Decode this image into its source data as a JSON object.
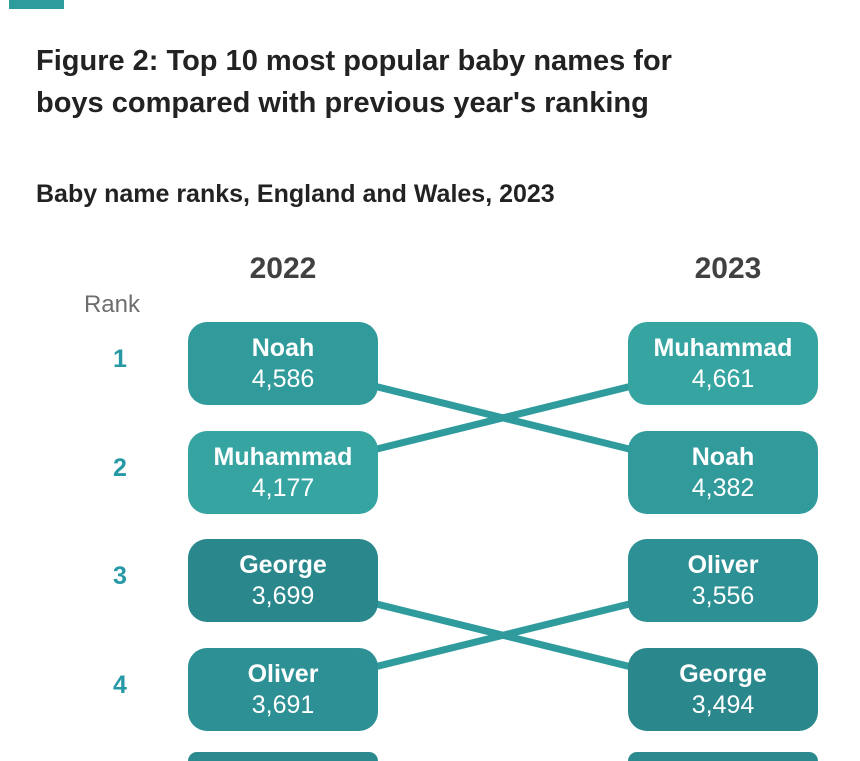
{
  "figure": {
    "title": "Figure 2: Top 10 most popular baby names for boys compared with previous year's ranking",
    "title_lines": [
      "Figure 2: Top 10 most popular baby names for",
      "boys compared with previous year's ranking"
    ],
    "subtitle": "Baby name ranks, England and Wales, 2023"
  },
  "chart_data": {
    "type": "slope-rank-chart",
    "columns": [
      "2022",
      "2023"
    ],
    "rank_label": "Rank",
    "ranks": [
      "1",
      "2",
      "3",
      "4"
    ],
    "series_2022": [
      {
        "rank": 1,
        "name": "Noah",
        "count": 4586,
        "display": "4,586",
        "color": "#319B9C"
      },
      {
        "rank": 2,
        "name": "Muhammad",
        "count": 4177,
        "display": "4,177",
        "color": "#36A5A2"
      },
      {
        "rank": 3,
        "name": "George",
        "count": 3699,
        "display": "3,699",
        "color": "#2A888C"
      },
      {
        "rank": 4,
        "name": "Oliver",
        "count": 3691,
        "display": "3,691",
        "color": "#2D9094"
      }
    ],
    "series_2023": [
      {
        "rank": 1,
        "name": "Muhammad",
        "count": 4661,
        "display": "4,661",
        "color": "#36A5A2"
      },
      {
        "rank": 2,
        "name": "Noah",
        "count": 4382,
        "display": "4,382",
        "color": "#319B9C"
      },
      {
        "rank": 3,
        "name": "Oliver",
        "count": 3556,
        "display": "3,556",
        "color": "#2D9094"
      },
      {
        "rank": 4,
        "name": "George",
        "count": 3494,
        "display": "3,494",
        "color": "#2A888C"
      }
    ],
    "links": [
      {
        "name": "Noah",
        "from_rank": 1,
        "to_rank": 2
      },
      {
        "name": "Muhammad",
        "from_rank": 2,
        "to_rank": 1
      },
      {
        "name": "George",
        "from_rank": 3,
        "to_rank": 4
      },
      {
        "name": "Oliver",
        "from_rank": 4,
        "to_rank": 3
      }
    ],
    "partial_row5_visible": true,
    "partial_row5_color": "#2B8A8E",
    "line_color": "#2F9B9D",
    "accent_color": "#2E9B9C",
    "rank_number_color": "#2799A6",
    "legend_position": "none",
    "grid": false
  }
}
